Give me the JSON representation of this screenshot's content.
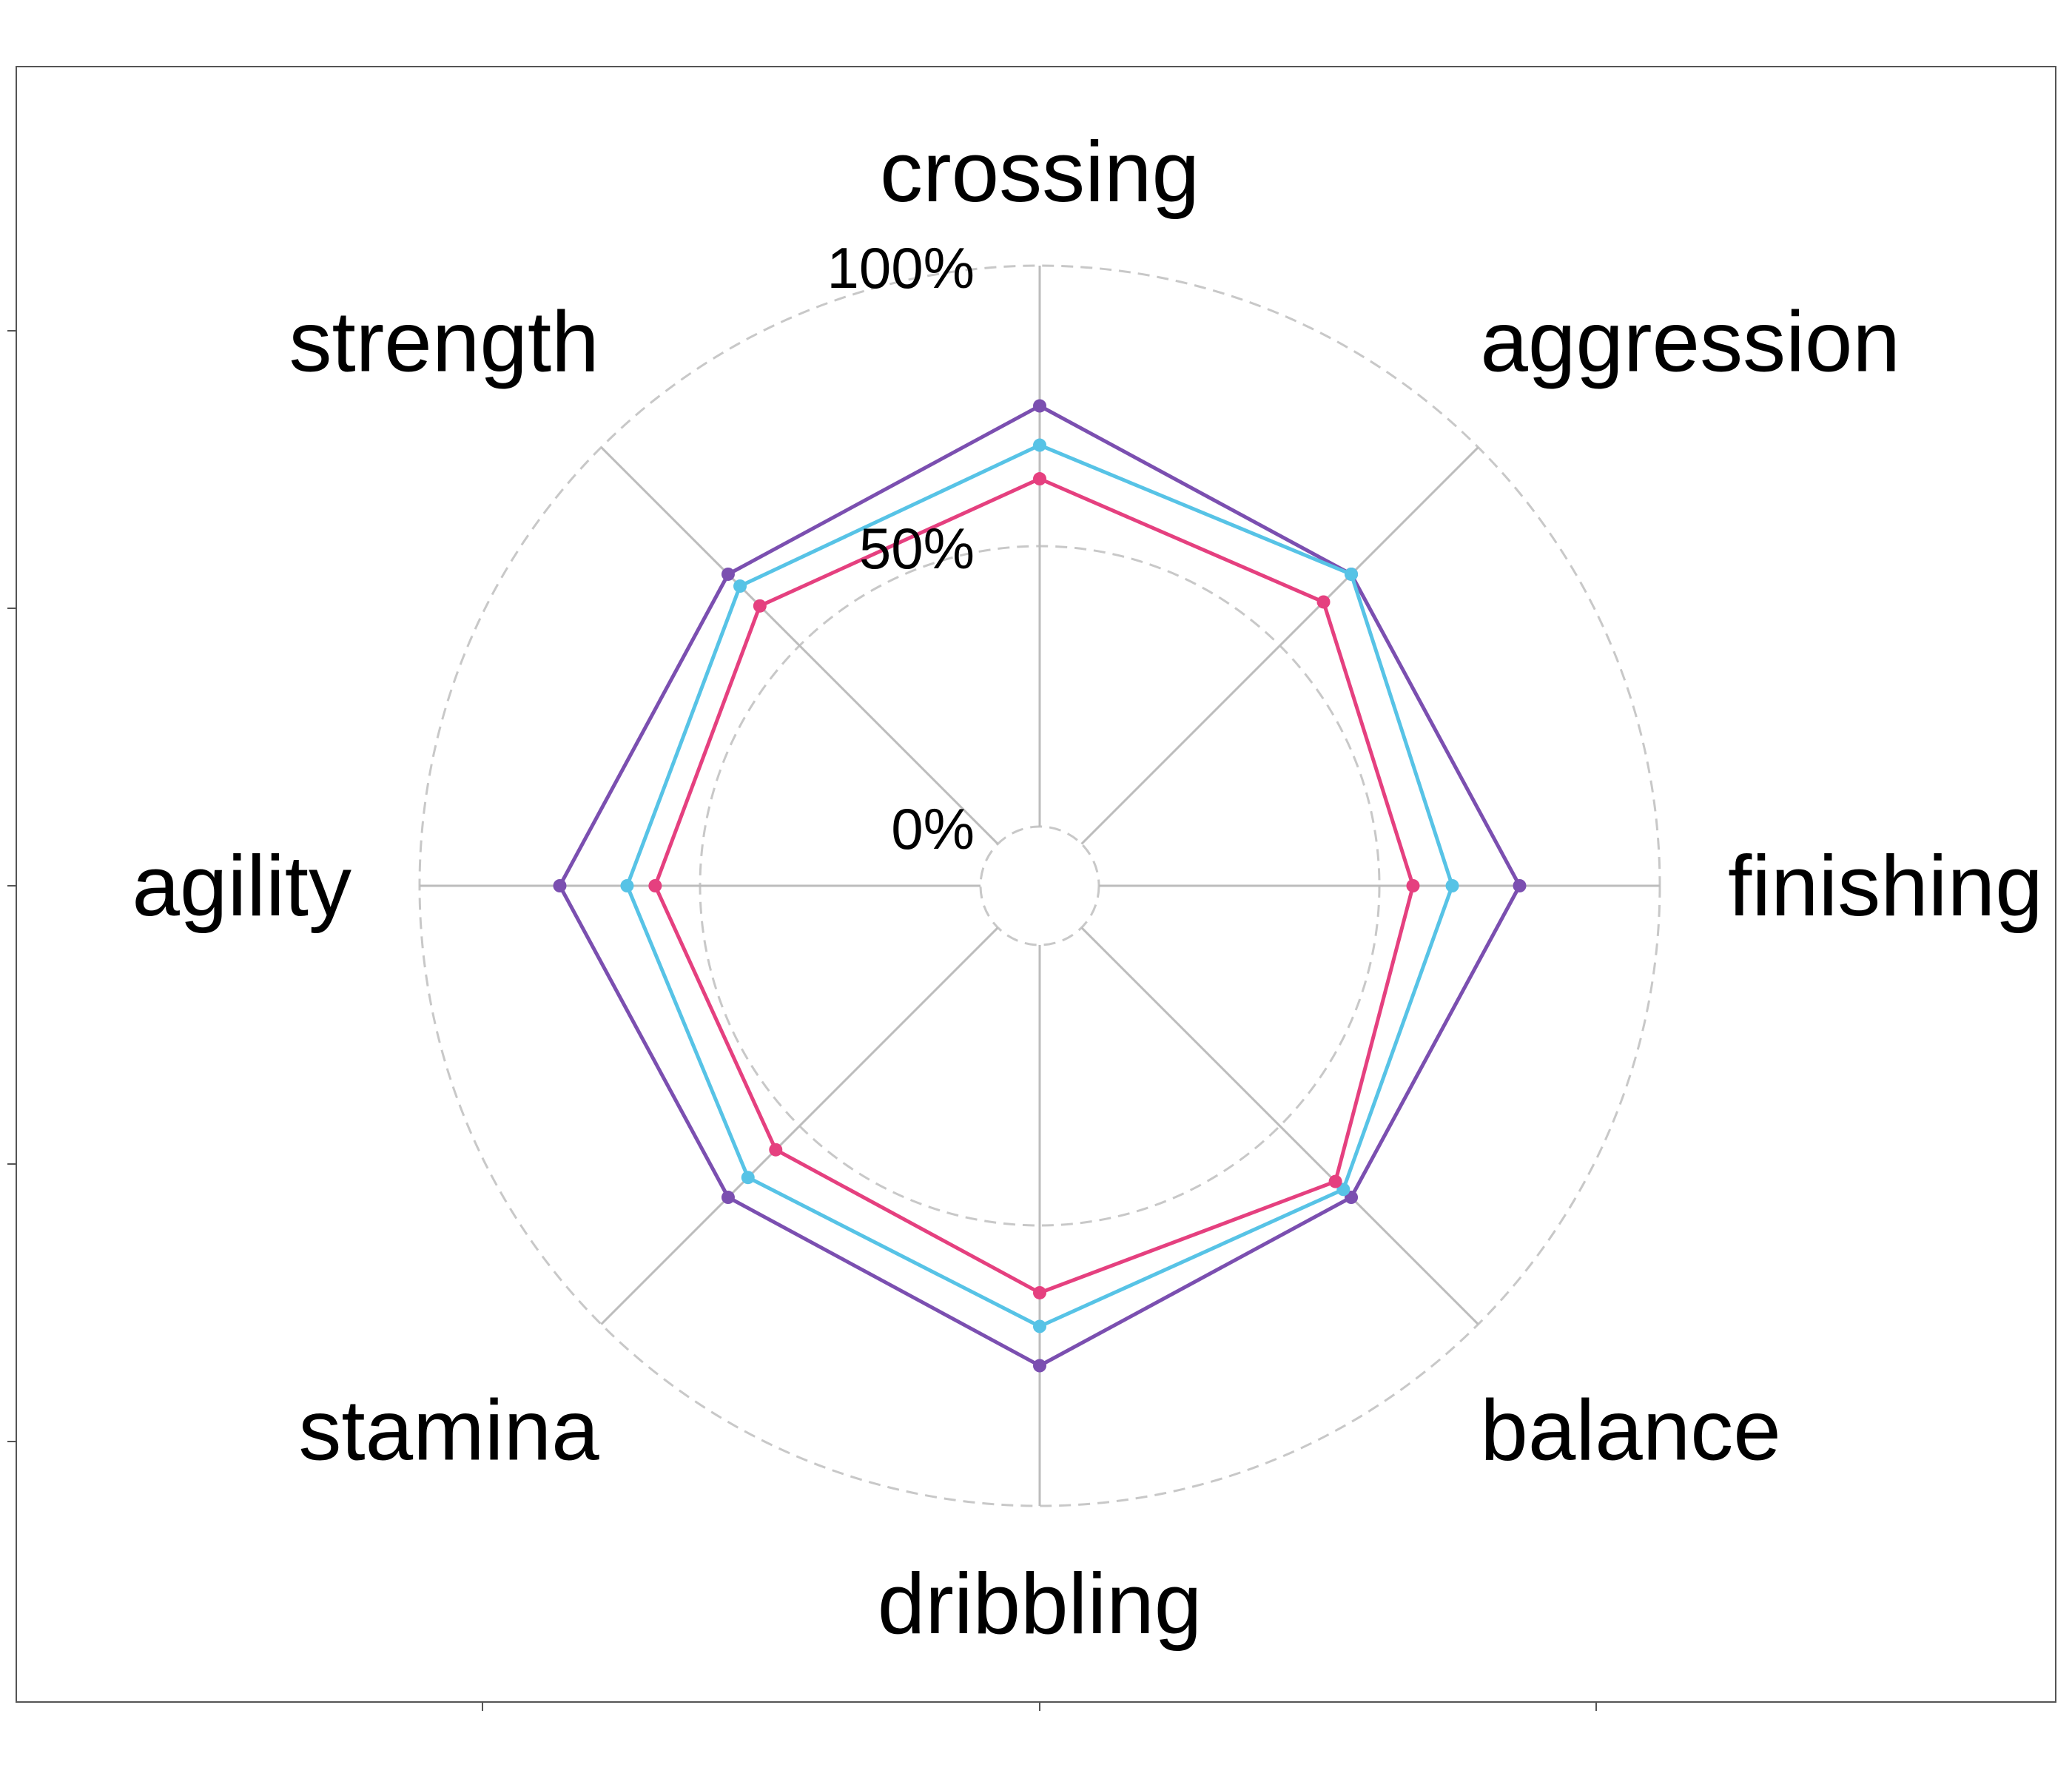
{
  "chart_data": {
    "type": "radar",
    "axes": [
      "crossing",
      "aggression",
      "finishing",
      "balance",
      "dribbling",
      "stamina",
      "agility",
      "strength"
    ],
    "grid_labels": [
      "0%",
      "50%",
      "100%"
    ],
    "grid_levels": [
      0,
      50,
      100
    ],
    "ylim": [
      0,
      100
    ],
    "grid": true,
    "legend": "none",
    "series": [
      {
        "color": "#7B4FB0",
        "values": [
          75,
          68,
          75,
          68,
          75,
          68,
          75,
          68
        ]
      },
      {
        "color": "#57C3E6",
        "values": [
          68,
          68,
          63,
          66,
          68,
          63,
          63,
          65
        ]
      },
      {
        "color": "#E5407F",
        "values": [
          62,
          61,
          56,
          64,
          62,
          56,
          58,
          60
        ]
      }
    ]
  }
}
